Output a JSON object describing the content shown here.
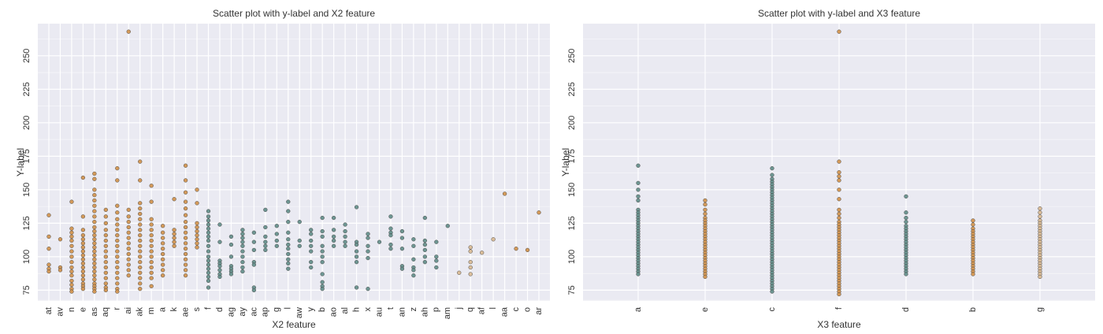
{
  "colors": {
    "plot_bg": "#eaeaf2",
    "grid": "#ffffff",
    "teal": "#5f8c87",
    "orange": "#d09048",
    "tan": "#d8b890"
  },
  "chart_data": [
    {
      "type": "scatter",
      "title": "Scatter plot with y-label and X2 feature",
      "xlabel": "X2 feature",
      "ylabel": "Y-label",
      "categories": [
        "at",
        "av",
        "n",
        "e",
        "as",
        "aq",
        "r",
        "ai",
        "ak",
        "m",
        "a",
        "k",
        "ae",
        "s",
        "f",
        "d",
        "ag",
        "ay",
        "ac",
        "ap",
        "g",
        "l",
        "aw",
        "y",
        "b",
        "ao",
        "al",
        "h",
        "x",
        "au",
        "t",
        "an",
        "z",
        "ah",
        "p",
        "am",
        "j",
        "q",
        "af",
        "l",
        "aa",
        "c",
        "o",
        "ar"
      ],
      "ylim": [
        67,
        274
      ],
      "yticks": [
        75,
        100,
        125,
        150,
        175,
        200,
        225,
        250
      ],
      "grid": true,
      "points": [
        {
          "x": "at",
          "ys": [
            131,
            115,
            106,
            94,
            91,
            89
          ],
          "color": "orange"
        },
        {
          "x": "av",
          "ys": [
            113,
            92,
            90
          ],
          "color": "orange"
        },
        {
          "x": "n",
          "ys": [
            141,
            121,
            118,
            115,
            112,
            108,
            104,
            100,
            96,
            92,
            89,
            86,
            82,
            79,
            76,
            74
          ],
          "color": "orange"
        },
        {
          "x": "e",
          "ys": [
            159,
            130,
            120,
            116,
            113,
            110,
            107,
            104,
            101,
            98,
            95,
            92,
            89,
            86,
            83,
            80,
            78,
            76
          ],
          "color": "orange"
        },
        {
          "x": "as",
          "ys": [
            162,
            158,
            150,
            146,
            142,
            138,
            134,
            130,
            126,
            122,
            119,
            116,
            113,
            110,
            107,
            104,
            101,
            98,
            95,
            92,
            89,
            86,
            83,
            80,
            78,
            76,
            74
          ],
          "color": "orange"
        },
        {
          "x": "aq",
          "ys": [
            135,
            130,
            125,
            120,
            116,
            112,
            108,
            104,
            100,
            96,
            92,
            88,
            84,
            80,
            77,
            75
          ],
          "color": "orange"
        },
        {
          "x": "r",
          "ys": [
            166,
            157,
            138,
            133,
            128,
            124,
            120,
            116,
            112,
            108,
            104,
            100,
            96,
            92,
            88,
            84,
            80,
            76,
            74
          ],
          "color": "orange"
        },
        {
          "x": "ai",
          "ys": [
            268,
            135,
            130,
            126,
            122,
            118,
            114,
            110,
            106,
            102,
            98,
            94,
            90,
            86
          ],
          "color": "orange"
        },
        {
          "x": "ak",
          "ys": [
            171,
            157,
            140,
            136,
            132,
            128,
            124,
            120,
            116,
            112,
            108,
            104,
            100,
            96,
            92,
            88,
            84,
            80,
            76
          ],
          "color": "orange"
        },
        {
          "x": "m",
          "ys": [
            153,
            141,
            128,
            124,
            120,
            116,
            112,
            108,
            104,
            100,
            96,
            92,
            88,
            84,
            78
          ],
          "color": "orange"
        },
        {
          "x": "a",
          "ys": [
            123,
            118,
            114,
            110,
            106,
            102,
            98,
            94,
            90,
            86
          ],
          "color": "orange"
        },
        {
          "x": "k",
          "ys": [
            143,
            120,
            117,
            114,
            111,
            108
          ],
          "color": "orange"
        },
        {
          "x": "ae",
          "ys": [
            168,
            157,
            148,
            141,
            136,
            131,
            126,
            122,
            118,
            114,
            110,
            106,
            102,
            98,
            94,
            90,
            86
          ],
          "color": "orange"
        },
        {
          "x": "s",
          "ys": [
            150,
            140,
            125,
            122,
            119,
            116,
            113,
            110,
            107
          ],
          "color": "orange"
        },
        {
          "x": "f",
          "ys": [
            134,
            130,
            127,
            124,
            121,
            118,
            115,
            112,
            108,
            104,
            100,
            97,
            94,
            91,
            88,
            85,
            82,
            77
          ],
          "color": "teal"
        },
        {
          "x": "d",
          "ys": [
            124,
            111,
            97,
            95,
            93,
            90,
            87,
            85
          ],
          "color": "teal"
        },
        {
          "x": "ag",
          "ys": [
            115,
            109,
            100,
            93,
            91,
            89,
            87
          ],
          "color": "teal"
        },
        {
          "x": "ay",
          "ys": [
            120,
            117,
            114,
            111,
            108,
            104,
            100,
            96,
            92,
            89
          ],
          "color": "teal"
        },
        {
          "x": "ac",
          "ys": [
            118,
            111,
            105,
            96,
            94,
            77,
            75
          ],
          "color": "teal"
        },
        {
          "x": "ap",
          "ys": [
            135,
            122,
            115,
            111,
            108,
            105
          ],
          "color": "teal"
        },
        {
          "x": "g",
          "ys": [
            123,
            117,
            112,
            108
          ],
          "color": "teal"
        },
        {
          "x": "l",
          "ys": [
            141,
            134,
            126,
            118,
            113,
            109,
            106,
            102,
            98,
            95,
            91
          ],
          "color": "teal"
        },
        {
          "x": "aw",
          "ys": [
            126,
            112,
            108
          ],
          "color": "teal"
        },
        {
          "x": "y",
          "ys": [
            120,
            117,
            112,
            108,
            104,
            96,
            92
          ],
          "color": "teal"
        },
        {
          "x": "b",
          "ys": [
            129,
            119,
            115,
            108,
            104,
            100,
            96,
            87,
            81,
            78,
            76
          ],
          "color": "teal"
        },
        {
          "x": "ao",
          "ys": [
            129,
            120,
            115,
            112,
            108
          ],
          "color": "teal"
        },
        {
          "x": "al",
          "ys": [
            124,
            119,
            115,
            111,
            108
          ],
          "color": "teal"
        },
        {
          "x": "h",
          "ys": [
            137,
            111,
            109,
            104,
            100,
            96,
            77
          ],
          "color": "teal"
        },
        {
          "x": "x",
          "ys": [
            117,
            114,
            108,
            104,
            99,
            76
          ],
          "color": "teal"
        },
        {
          "x": "au",
          "ys": [
            111
          ],
          "color": "teal"
        },
        {
          "x": "t",
          "ys": [
            130,
            121,
            118,
            116,
            109,
            106
          ],
          "color": "teal"
        },
        {
          "x": "an",
          "ys": [
            119,
            114,
            106,
            93,
            91
          ],
          "color": "teal"
        },
        {
          "x": "z",
          "ys": [
            113,
            108,
            98,
            92,
            90,
            86
          ],
          "color": "teal"
        },
        {
          "x": "ah",
          "ys": [
            129,
            112,
            109,
            105,
            100,
            96
          ],
          "color": "teal"
        },
        {
          "x": "p",
          "ys": [
            111,
            100,
            97,
            92
          ],
          "color": "teal"
        },
        {
          "x": "am",
          "ys": [
            123
          ],
          "color": "teal"
        },
        {
          "x": "j",
          "ys": [
            88
          ],
          "color": "tan"
        },
        {
          "x": "q",
          "ys": [
            107,
            104,
            96,
            92,
            87
          ],
          "color": "tan"
        },
        {
          "x": "af",
          "ys": [
            103
          ],
          "color": "tan"
        },
        {
          "x": "l",
          "ys": [
            113
          ],
          "color": "tan"
        },
        {
          "x": "aa",
          "ys": [
            147
          ],
          "color": "orange"
        },
        {
          "x": "c",
          "ys": [
            106
          ],
          "color": "orange"
        },
        {
          "x": "o",
          "ys": [
            105
          ],
          "color": "orange"
        },
        {
          "x": "ar",
          "ys": [
            133
          ],
          "color": "orange"
        }
      ]
    },
    {
      "type": "scatter",
      "title": "Scatter plot with y-label and X3 feature",
      "xlabel": "X3 feature",
      "ylabel": "Y-label",
      "categories": [
        "a",
        "e",
        "c",
        "f",
        "d",
        "b",
        "g"
      ],
      "ylim": [
        67,
        274
      ],
      "yticks": [
        75,
        100,
        125,
        150,
        175,
        200,
        225,
        250
      ],
      "grid": true,
      "points": [
        {
          "x": "a",
          "ys": [
            168,
            155,
            150,
            145,
            142,
            135,
            133,
            131,
            129,
            127,
            125,
            123,
            121,
            119,
            117,
            115,
            113,
            111,
            109,
            107,
            105,
            103,
            101,
            99,
            97,
            95,
            93,
            91,
            89,
            87
          ],
          "color": "teal"
        },
        {
          "x": "e",
          "ys": [
            142,
            139,
            135,
            132,
            129,
            127,
            125,
            123,
            121,
            119,
            117,
            115,
            113,
            111,
            109,
            107,
            105,
            103,
            101,
            99,
            97,
            95,
            93,
            91,
            89,
            87,
            85
          ],
          "color": "orange"
        },
        {
          "x": "c",
          "ys": [
            166,
            161,
            158,
            156,
            154,
            152,
            150,
            148,
            146,
            144,
            142,
            140,
            138,
            136,
            134,
            132,
            130,
            128,
            126,
            124,
            122,
            120,
            118,
            116,
            114,
            112,
            110,
            108,
            106,
            104,
            102,
            100,
            98,
            96,
            94,
            92,
            90,
            88,
            86,
            84,
            82,
            80,
            78,
            76,
            74
          ],
          "color": "teal"
        },
        {
          "x": "f",
          "ys": [
            268,
            171,
            163,
            160,
            157,
            150,
            143,
            135,
            132,
            129,
            126,
            124,
            122,
            120,
            118,
            116,
            114,
            112,
            110,
            108,
            106,
            104,
            102,
            100,
            98,
            96,
            94,
            92,
            90,
            88,
            86,
            84,
            82,
            80,
            78,
            76,
            74,
            72
          ],
          "color": "orange"
        },
        {
          "x": "d",
          "ys": [
            145,
            133,
            129,
            126,
            123,
            121,
            119,
            117,
            115,
            113,
            111,
            109,
            107,
            105,
            103,
            101,
            99,
            97,
            95,
            93,
            91,
            89,
            87
          ],
          "color": "teal"
        },
        {
          "x": "b",
          "ys": [
            127,
            124,
            121,
            119,
            117,
            115,
            113,
            111,
            109,
            107,
            105,
            103,
            101,
            99,
            97,
            95,
            93,
            91,
            89,
            87
          ],
          "color": "orange"
        },
        {
          "x": "g",
          "ys": [
            136,
            133,
            130,
            127,
            125,
            123,
            121,
            119,
            117,
            115,
            113,
            111,
            109,
            107,
            105,
            103,
            101,
            99,
            97,
            95,
            93,
            91,
            89,
            87,
            85
          ],
          "color": "tan"
        }
      ]
    }
  ]
}
